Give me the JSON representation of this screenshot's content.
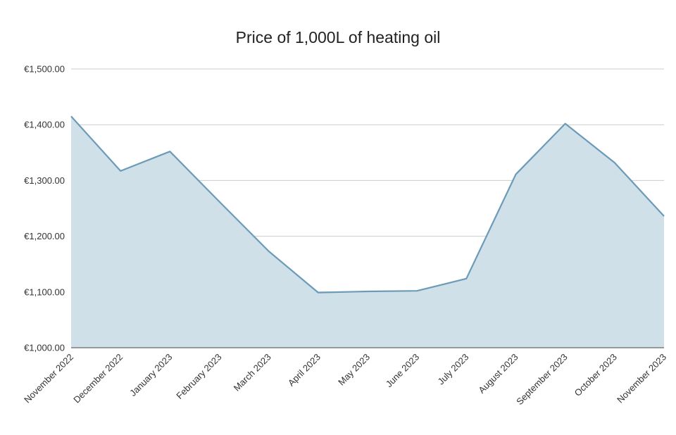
{
  "chart_data": {
    "type": "area",
    "title": "Price of 1,000L of heating oil",
    "xlabel": "",
    "ylabel": "",
    "categories": [
      "November 2022",
      "December 2022",
      "January 2023",
      "February 2023",
      "March 2023",
      "April 2023",
      "May 2023",
      "June 2023",
      "July 2023",
      "August 2023",
      "September 2023",
      "October 2023",
      "November 2023"
    ],
    "values": [
      1415,
      1317,
      1352,
      1262,
      1173,
      1099,
      1101,
      1102,
      1124,
      1311,
      1402,
      1332,
      1236
    ],
    "ylim": [
      1000,
      1500
    ],
    "yticks": [
      1000,
      1100,
      1200,
      1300,
      1400,
      1500
    ],
    "ytick_labels": [
      "€1,000.00",
      "€1,100.00",
      "€1,200.00",
      "€1,300.00",
      "€1,400.00",
      "€1,500.00"
    ],
    "grid": true,
    "legend": "none",
    "colors": {
      "line": "#6b9bb8",
      "fill": "#d0e0e8",
      "grid": "#cccccc",
      "axis": "#444444",
      "text": "#333333"
    }
  }
}
